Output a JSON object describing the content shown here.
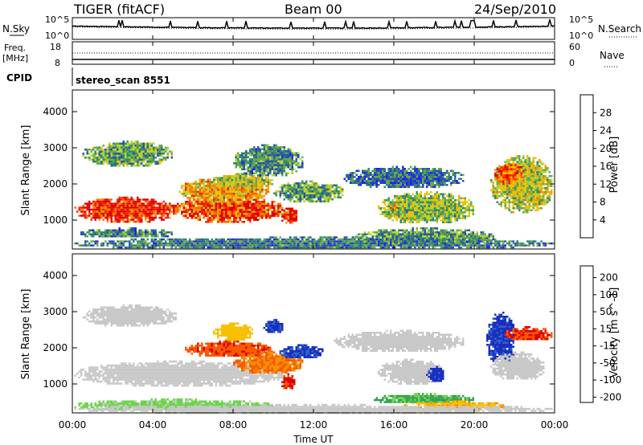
{
  "header": {
    "radar": "TIGER (fitACF)",
    "beam": "Beam 00",
    "date": "24/Sep/2010",
    "cpid_label": "CPID",
    "cpid_text": "stereo_scan 8551"
  },
  "noise_panel": {
    "left_label": "N.Sky",
    "right_label": "N.Search",
    "left_ticks": [
      "10^5",
      "10^0"
    ],
    "right_ticks": [
      "10^5",
      "10^0"
    ]
  },
  "freq_panel": {
    "left_label_1": "Freq.",
    "left_label_2": "[MHz]",
    "right_label": "Nave",
    "left_ticks": [
      "18",
      "8"
    ],
    "right_ticks": [
      "60",
      "0"
    ]
  },
  "time_axis": {
    "label": "Time UT",
    "ticks": [
      "00:00",
      "04:00",
      "08:00",
      "12:00",
      "16:00",
      "20:00",
      "00:00"
    ]
  },
  "chart_data": [
    {
      "type": "heatmap",
      "title": "",
      "quantity": "Power",
      "ylabel": "Slant Range [km]",
      "xlabel": "",
      "yticks": [
        "1000",
        "2000",
        "3000",
        "4000"
      ],
      "ylim": [
        200,
        4600
      ],
      "xlim_hours": [
        0,
        24
      ],
      "colorbar_label": "Power [dB]",
      "colorbar_ticks": [
        "4",
        "8",
        "12",
        "16",
        "20",
        "24",
        "28"
      ],
      "colorbar_colors": [
        "#2222ee",
        "#2c53a9",
        "#2e8a6c",
        "#6aa84f",
        "#b5d33a",
        "#f0c000",
        "#f59a00",
        "#ff6000",
        "#ff2000",
        "#dd0000"
      ],
      "blobs": [
        {
          "t0": 0.1,
          "t1": 5.3,
          "r0": 950,
          "r1": 1650,
          "v": 27
        },
        {
          "t0": 5.0,
          "t1": 10.5,
          "r0": 950,
          "r1": 1700,
          "v": 24
        },
        {
          "t0": 10.3,
          "t1": 11.2,
          "r0": 900,
          "r1": 1400,
          "v": 26
        },
        {
          "t0": 5.3,
          "t1": 9.8,
          "r0": 1500,
          "r1": 2200,
          "v": 18
        },
        {
          "t0": 6.8,
          "t1": 10.0,
          "r0": 1900,
          "r1": 2300,
          "v": 14
        },
        {
          "t0": 0.5,
          "t1": 5.0,
          "r0": 2500,
          "r1": 3200,
          "v": 10
        },
        {
          "t0": 10.0,
          "t1": 13.5,
          "r0": 1500,
          "r1": 2100,
          "v": 10
        },
        {
          "t0": 13.5,
          "t1": 19.5,
          "r0": 1900,
          "r1": 2500,
          "v": 6
        },
        {
          "t0": 15.5,
          "t1": 18.5,
          "r0": 1000,
          "r1": 1600,
          "v": 22
        },
        {
          "t0": 15.2,
          "t1": 20.0,
          "r0": 900,
          "r1": 1800,
          "v": 12
        },
        {
          "t0": 16.5,
          "t1": 18.0,
          "r0": 400,
          "r1": 650,
          "v": 22
        },
        {
          "t0": 14.0,
          "t1": 21.0,
          "r0": 300,
          "r1": 800,
          "v": 9
        },
        {
          "t0": 20.8,
          "t1": 23.9,
          "r0": 1200,
          "r1": 2800,
          "v": 14
        },
        {
          "t0": 21.0,
          "t1": 22.5,
          "r0": 2000,
          "r1": 2600,
          "v": 22
        },
        {
          "t0": 0.0,
          "t1": 24.0,
          "r0": 200,
          "r1": 550,
          "v": 7
        },
        {
          "t0": 0.3,
          "t1": 5.0,
          "r0": 500,
          "r1": 800,
          "v": 8
        },
        {
          "t0": 8.0,
          "t1": 11.5,
          "r0": 2200,
          "r1": 3100,
          "v": 8
        }
      ]
    },
    {
      "type": "heatmap",
      "title": "",
      "quantity": "Velocity",
      "ylabel": "Slant Range [km]",
      "xlabel": "Time UT",
      "yticks": [
        "1000",
        "2000",
        "3000",
        "4000"
      ],
      "ylim": [
        200,
        4600
      ],
      "xlim_hours": [
        0,
        24
      ],
      "colorbar_label": "Velocity [m s^-1]",
      "colorbar_ticks": [
        "200",
        "100",
        "50",
        "15",
        "-15",
        "-50",
        "-100",
        "-200"
      ],
      "colorbar_colors": [
        "#1a2fbf",
        "#2f61c9",
        "#2fa04a",
        "#6cd64a",
        "#c8c8c8",
        "#f8c000",
        "#f89000",
        "#f85a00",
        "#e00000"
      ],
      "blobs": [
        {
          "t0": 0.1,
          "t1": 10.6,
          "r0": 950,
          "r1": 1650,
          "v": 0
        },
        {
          "t0": 0.5,
          "t1": 5.2,
          "r0": 2600,
          "r1": 3200,
          "v": 0
        },
        {
          "t0": 5.5,
          "t1": 10.0,
          "r0": 1750,
          "r1": 2200,
          "v": -180
        },
        {
          "t0": 8.0,
          "t1": 11.5,
          "r0": 1300,
          "r1": 1900,
          "v": -110
        },
        {
          "t0": 10.3,
          "t1": 11.1,
          "r0": 850,
          "r1": 1300,
          "v": -220
        },
        {
          "t0": 10.3,
          "t1": 12.5,
          "r0": 1700,
          "r1": 2100,
          "v": 200
        },
        {
          "t0": 9.5,
          "t1": 10.5,
          "r0": 2400,
          "r1": 2800,
          "v": 220
        },
        {
          "t0": 7.0,
          "t1": 9.0,
          "r0": 2200,
          "r1": 2700,
          "v": -40
        },
        {
          "t0": 13.0,
          "t1": 19.5,
          "r0": 1900,
          "r1": 2500,
          "v": 0
        },
        {
          "t0": 15.2,
          "t1": 18.5,
          "r0": 1000,
          "r1": 1700,
          "v": 0
        },
        {
          "t0": 17.6,
          "t1": 18.5,
          "r0": 1050,
          "r1": 1500,
          "v": 230
        },
        {
          "t0": 15.0,
          "t1": 20.0,
          "r0": 450,
          "r1": 750,
          "v": 60
        },
        {
          "t0": 16.5,
          "t1": 21.5,
          "r0": 300,
          "r1": 550,
          "v": -50
        },
        {
          "t0": 20.6,
          "t1": 22.0,
          "r0": 1500,
          "r1": 3000,
          "v": 220
        },
        {
          "t0": 21.5,
          "t1": 23.9,
          "r0": 2200,
          "r1": 2600,
          "v": -200
        },
        {
          "t0": 20.8,
          "t1": 23.5,
          "r0": 1100,
          "r1": 1900,
          "v": 0
        },
        {
          "t0": 0.0,
          "t1": 10.0,
          "r0": 250,
          "r1": 600,
          "v": 20
        },
        {
          "t0": 0.0,
          "t1": 24.0,
          "r0": 200,
          "r1": 450,
          "v": 0
        }
      ]
    }
  ]
}
